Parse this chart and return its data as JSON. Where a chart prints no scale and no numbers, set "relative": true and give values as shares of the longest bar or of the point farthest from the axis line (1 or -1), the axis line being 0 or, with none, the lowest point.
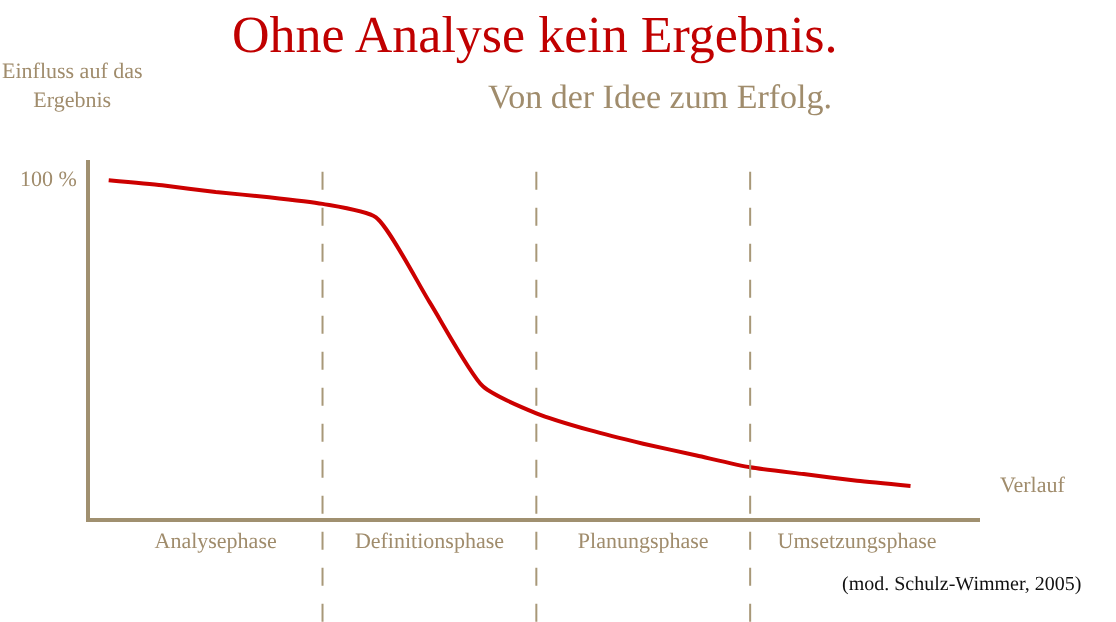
{
  "chart_data": {
    "type": "line",
    "title": "Ohne Analyse kein Ergebnis.",
    "subtitle": "Von der Idee zum Erfolg.",
    "xlabel": "Verlauf",
    "ylabel": "Einfluss auf das Ergebnis",
    "relative": true,
    "categories": [
      null,
      null,
      "Analysephase",
      null,
      null,
      null,
      "Definitionsphase",
      null,
      null,
      null,
      "Planungsphase",
      null,
      null,
      null,
      "Umsetzungsphase",
      null
    ],
    "series": [
      {
        "color": "#cc0000",
        "values": [
          1.0,
          0.985,
          0.965,
          0.95,
          0.93,
          0.89,
          0.64,
          0.39,
          0.31,
          0.26,
          0.22,
          0.185,
          0.15,
          0.13,
          0.11,
          0.095
        ]
      }
    ],
    "annotations": [
      "100 %",
      "(mod. Schulz-Wimmer, 2005)"
    ],
    "marker": "none",
    "line_style": "solid",
    "grid": "x"
  }
}
